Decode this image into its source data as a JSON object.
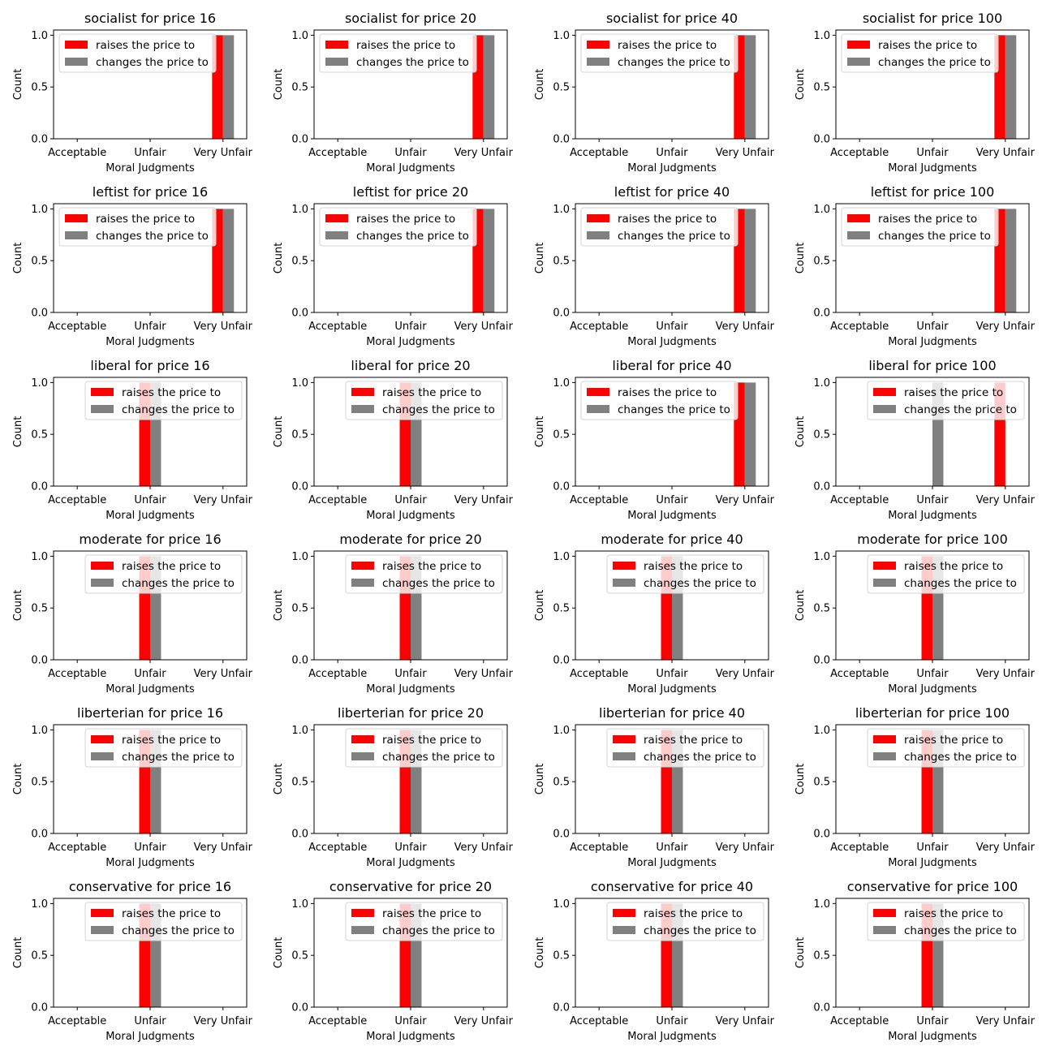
{
  "chart_data": [
    {
      "type": "bar",
      "title": "socialist for price 16",
      "categories": [
        "Acceptable",
        "Unfair",
        "Very Unfair"
      ],
      "series": [
        {
          "name": "raises the price to",
          "values": [
            0,
            0,
            1
          ]
        },
        {
          "name": "changes the price to",
          "values": [
            0,
            0,
            1
          ]
        }
      ],
      "xlabel": "Moral Judgments",
      "ylabel": "Count",
      "ylim": [
        0,
        1.05
      ],
      "yticks": [
        "0.0",
        "0.5",
        "1.0"
      ],
      "legend": "upper left"
    },
    {
      "type": "bar",
      "title": "socialist for price 20",
      "categories": [
        "Acceptable",
        "Unfair",
        "Very Unfair"
      ],
      "series": [
        {
          "name": "raises the price to",
          "values": [
            0,
            0,
            1
          ]
        },
        {
          "name": "changes the price to",
          "values": [
            0,
            0,
            1
          ]
        }
      ],
      "xlabel": "Moral Judgments",
      "ylabel": "Count",
      "ylim": [
        0,
        1.05
      ],
      "yticks": [
        "0.0",
        "0.5",
        "1.0"
      ],
      "legend": "upper left"
    },
    {
      "type": "bar",
      "title": "socialist for price 40",
      "categories": [
        "Acceptable",
        "Unfair",
        "Very Unfair"
      ],
      "series": [
        {
          "name": "raises the price to",
          "values": [
            0,
            0,
            1
          ]
        },
        {
          "name": "changes the price to",
          "values": [
            0,
            0,
            1
          ]
        }
      ],
      "xlabel": "Moral Judgments",
      "ylabel": "Count",
      "ylim": [
        0,
        1.05
      ],
      "yticks": [
        "0.0",
        "0.5",
        "1.0"
      ],
      "legend": "upper left"
    },
    {
      "type": "bar",
      "title": "socialist for price 100",
      "categories": [
        "Acceptable",
        "Unfair",
        "Very Unfair"
      ],
      "series": [
        {
          "name": "raises the price to",
          "values": [
            0,
            0,
            1
          ]
        },
        {
          "name": "changes the price to",
          "values": [
            0,
            0,
            1
          ]
        }
      ],
      "xlabel": "Moral Judgments",
      "ylabel": "Count",
      "ylim": [
        0,
        1.05
      ],
      "yticks": [
        "0.0",
        "0.5",
        "1.0"
      ],
      "legend": "upper left"
    },
    {
      "type": "bar",
      "title": "leftist for price 16",
      "categories": [
        "Acceptable",
        "Unfair",
        "Very Unfair"
      ],
      "series": [
        {
          "name": "raises the price to",
          "values": [
            0,
            0,
            1
          ]
        },
        {
          "name": "changes the price to",
          "values": [
            0,
            0,
            1
          ]
        }
      ],
      "xlabel": "Moral Judgments",
      "ylabel": "Count",
      "ylim": [
        0,
        1.05
      ],
      "yticks": [
        "0.0",
        "0.5",
        "1.0"
      ],
      "legend": "upper left"
    },
    {
      "type": "bar",
      "title": "leftist for price 20",
      "categories": [
        "Acceptable",
        "Unfair",
        "Very Unfair"
      ],
      "series": [
        {
          "name": "raises the price to",
          "values": [
            0,
            0,
            1
          ]
        },
        {
          "name": "changes the price to",
          "values": [
            0,
            0,
            1
          ]
        }
      ],
      "xlabel": "Moral Judgments",
      "ylabel": "Count",
      "ylim": [
        0,
        1.05
      ],
      "yticks": [
        "0.0",
        "0.5",
        "1.0"
      ],
      "legend": "upper left"
    },
    {
      "type": "bar",
      "title": "leftist for price 40",
      "categories": [
        "Acceptable",
        "Unfair",
        "Very Unfair"
      ],
      "series": [
        {
          "name": "raises the price to",
          "values": [
            0,
            0,
            1
          ]
        },
        {
          "name": "changes the price to",
          "values": [
            0,
            0,
            1
          ]
        }
      ],
      "xlabel": "Moral Judgments",
      "ylabel": "Count",
      "ylim": [
        0,
        1.05
      ],
      "yticks": [
        "0.0",
        "0.5",
        "1.0"
      ],
      "legend": "upper left"
    },
    {
      "type": "bar",
      "title": "leftist for price 100",
      "categories": [
        "Acceptable",
        "Unfair",
        "Very Unfair"
      ],
      "series": [
        {
          "name": "raises the price to",
          "values": [
            0,
            0,
            1
          ]
        },
        {
          "name": "changes the price to",
          "values": [
            0,
            0,
            1
          ]
        }
      ],
      "xlabel": "Moral Judgments",
      "ylabel": "Count",
      "ylim": [
        0,
        1.05
      ],
      "yticks": [
        "0.0",
        "0.5",
        "1.0"
      ],
      "legend": "upper left"
    },
    {
      "type": "bar",
      "title": "liberal for price 16",
      "categories": [
        "Acceptable",
        "Unfair",
        "Very Unfair"
      ],
      "series": [
        {
          "name": "raises the price to",
          "values": [
            0,
            1,
            0
          ]
        },
        {
          "name": "changes the price to",
          "values": [
            0,
            1,
            0
          ]
        }
      ],
      "xlabel": "Moral Judgments",
      "ylabel": "Count",
      "ylim": [
        0,
        1.05
      ],
      "yticks": [
        "0.0",
        "0.5",
        "1.0"
      ],
      "legend": "upper right"
    },
    {
      "type": "bar",
      "title": "liberal for price 20",
      "categories": [
        "Acceptable",
        "Unfair",
        "Very Unfair"
      ],
      "series": [
        {
          "name": "raises the price to",
          "values": [
            0,
            1,
            0
          ]
        },
        {
          "name": "changes the price to",
          "values": [
            0,
            1,
            0
          ]
        }
      ],
      "xlabel": "Moral Judgments",
      "ylabel": "Count",
      "ylim": [
        0,
        1.05
      ],
      "yticks": [
        "0.0",
        "0.5",
        "1.0"
      ],
      "legend": "upper right"
    },
    {
      "type": "bar",
      "title": "liberal for price 40",
      "categories": [
        "Acceptable",
        "Unfair",
        "Very Unfair"
      ],
      "series": [
        {
          "name": "raises the price to",
          "values": [
            0,
            0,
            1
          ]
        },
        {
          "name": "changes the price to",
          "values": [
            0,
            0,
            1
          ]
        }
      ],
      "xlabel": "Moral Judgments",
      "ylabel": "Count",
      "ylim": [
        0,
        1.05
      ],
      "yticks": [
        "0.0",
        "0.5",
        "1.0"
      ],
      "legend": "upper left"
    },
    {
      "type": "bar",
      "title": "liberal for price 100",
      "categories": [
        "Acceptable",
        "Unfair",
        "Very Unfair"
      ],
      "series": [
        {
          "name": "raises the price to",
          "values": [
            0,
            0,
            1
          ]
        },
        {
          "name": "changes the price to",
          "values": [
            0,
            1,
            0
          ]
        }
      ],
      "xlabel": "Moral Judgments",
      "ylabel": "Count",
      "ylim": [
        0,
        1.05
      ],
      "yticks": [
        "0.0",
        "0.5",
        "1.0"
      ],
      "legend": "upper right"
    },
    {
      "type": "bar",
      "title": "moderate for price 16",
      "categories": [
        "Acceptable",
        "Unfair",
        "Very Unfair"
      ],
      "series": [
        {
          "name": "raises the price to",
          "values": [
            0,
            1,
            0
          ]
        },
        {
          "name": "changes the price to",
          "values": [
            0,
            1,
            0
          ]
        }
      ],
      "xlabel": "Moral Judgments",
      "ylabel": "Count",
      "ylim": [
        0,
        1.05
      ],
      "yticks": [
        "0.0",
        "0.5",
        "1.0"
      ],
      "legend": "upper right"
    },
    {
      "type": "bar",
      "title": "moderate for price 20",
      "categories": [
        "Acceptable",
        "Unfair",
        "Very Unfair"
      ],
      "series": [
        {
          "name": "raises the price to",
          "values": [
            0,
            1,
            0
          ]
        },
        {
          "name": "changes the price to",
          "values": [
            0,
            1,
            0
          ]
        }
      ],
      "xlabel": "Moral Judgments",
      "ylabel": "Count",
      "ylim": [
        0,
        1.05
      ],
      "yticks": [
        "0.0",
        "0.5",
        "1.0"
      ],
      "legend": "upper right"
    },
    {
      "type": "bar",
      "title": "moderate for price 40",
      "categories": [
        "Acceptable",
        "Unfair",
        "Very Unfair"
      ],
      "series": [
        {
          "name": "raises the price to",
          "values": [
            0,
            1,
            0
          ]
        },
        {
          "name": "changes the price to",
          "values": [
            0,
            1,
            0
          ]
        }
      ],
      "xlabel": "Moral Judgments",
      "ylabel": "Count",
      "ylim": [
        0,
        1.05
      ],
      "yticks": [
        "0.0",
        "0.5",
        "1.0"
      ],
      "legend": "upper right"
    },
    {
      "type": "bar",
      "title": "moderate for price 100",
      "categories": [
        "Acceptable",
        "Unfair",
        "Very Unfair"
      ],
      "series": [
        {
          "name": "raises the price to",
          "values": [
            0,
            1,
            0
          ]
        },
        {
          "name": "changes the price to",
          "values": [
            0,
            1,
            0
          ]
        }
      ],
      "xlabel": "Moral Judgments",
      "ylabel": "Count",
      "ylim": [
        0,
        1.05
      ],
      "yticks": [
        "0.0",
        "0.5",
        "1.0"
      ],
      "legend": "upper right"
    },
    {
      "type": "bar",
      "title": "liberterian for price 16",
      "categories": [
        "Acceptable",
        "Unfair",
        "Very Unfair"
      ],
      "series": [
        {
          "name": "raises the price to",
          "values": [
            0,
            1,
            0
          ]
        },
        {
          "name": "changes the price to",
          "values": [
            0,
            1,
            0
          ]
        }
      ],
      "xlabel": "Moral Judgments",
      "ylabel": "Count",
      "ylim": [
        0,
        1.05
      ],
      "yticks": [
        "0.0",
        "0.5",
        "1.0"
      ],
      "legend": "upper right"
    },
    {
      "type": "bar",
      "title": "liberterian for price 20",
      "categories": [
        "Acceptable",
        "Unfair",
        "Very Unfair"
      ],
      "series": [
        {
          "name": "raises the price to",
          "values": [
            0,
            1,
            0
          ]
        },
        {
          "name": "changes the price to",
          "values": [
            0,
            1,
            0
          ]
        }
      ],
      "xlabel": "Moral Judgments",
      "ylabel": "Count",
      "ylim": [
        0,
        1.05
      ],
      "yticks": [
        "0.0",
        "0.5",
        "1.0"
      ],
      "legend": "upper right"
    },
    {
      "type": "bar",
      "title": "liberterian for price 40",
      "categories": [
        "Acceptable",
        "Unfair",
        "Very Unfair"
      ],
      "series": [
        {
          "name": "raises the price to",
          "values": [
            0,
            1,
            0
          ]
        },
        {
          "name": "changes the price to",
          "values": [
            0,
            1,
            0
          ]
        }
      ],
      "xlabel": "Moral Judgments",
      "ylabel": "Count",
      "ylim": [
        0,
        1.05
      ],
      "yticks": [
        "0.0",
        "0.5",
        "1.0"
      ],
      "legend": "upper right"
    },
    {
      "type": "bar",
      "title": "liberterian for price 100",
      "categories": [
        "Acceptable",
        "Unfair",
        "Very Unfair"
      ],
      "series": [
        {
          "name": "raises the price to",
          "values": [
            0,
            1,
            0
          ]
        },
        {
          "name": "changes the price to",
          "values": [
            0,
            1,
            0
          ]
        }
      ],
      "xlabel": "Moral Judgments",
      "ylabel": "Count",
      "ylim": [
        0,
        1.05
      ],
      "yticks": [
        "0.0",
        "0.5",
        "1.0"
      ],
      "legend": "upper right"
    },
    {
      "type": "bar",
      "title": "conservative for price 16",
      "categories": [
        "Acceptable",
        "Unfair",
        "Very Unfair"
      ],
      "series": [
        {
          "name": "raises the price to",
          "values": [
            0,
            1,
            0
          ]
        },
        {
          "name": "changes the price to",
          "values": [
            0,
            1,
            0
          ]
        }
      ],
      "xlabel": "Moral Judgments",
      "ylabel": "Count",
      "ylim": [
        0,
        1.05
      ],
      "yticks": [
        "0.0",
        "0.5",
        "1.0"
      ],
      "legend": "upper right"
    },
    {
      "type": "bar",
      "title": "conservative for price 20",
      "categories": [
        "Acceptable",
        "Unfair",
        "Very Unfair"
      ],
      "series": [
        {
          "name": "raises the price to",
          "values": [
            0,
            1,
            0
          ]
        },
        {
          "name": "changes the price to",
          "values": [
            0,
            1,
            0
          ]
        }
      ],
      "xlabel": "Moral Judgments",
      "ylabel": "Count",
      "ylim": [
        0,
        1.05
      ],
      "yticks": [
        "0.0",
        "0.5",
        "1.0"
      ],
      "legend": "upper right"
    },
    {
      "type": "bar",
      "title": "conservative for price 40",
      "categories": [
        "Acceptable",
        "Unfair",
        "Very Unfair"
      ],
      "series": [
        {
          "name": "raises the price to",
          "values": [
            0,
            1,
            0
          ]
        },
        {
          "name": "changes the price to",
          "values": [
            0,
            1,
            0
          ]
        }
      ],
      "xlabel": "Moral Judgments",
      "ylabel": "Count",
      "ylim": [
        0,
        1.05
      ],
      "yticks": [
        "0.0",
        "0.5",
        "1.0"
      ],
      "legend": "upper right"
    },
    {
      "type": "bar",
      "title": "conservative for price 100",
      "categories": [
        "Acceptable",
        "Unfair",
        "Very Unfair"
      ],
      "series": [
        {
          "name": "raises the price to",
          "values": [
            0,
            1,
            0
          ]
        },
        {
          "name": "changes the price to",
          "values": [
            0,
            1,
            0
          ]
        }
      ],
      "xlabel": "Moral Judgments",
      "ylabel": "Count",
      "ylim": [
        0,
        1.05
      ],
      "yticks": [
        "0.0",
        "0.5",
        "1.0"
      ],
      "legend": "upper right"
    }
  ],
  "colors": {
    "series": [
      "#ff0000",
      "#808080"
    ],
    "axes": "#000000",
    "background": "#ffffff"
  }
}
